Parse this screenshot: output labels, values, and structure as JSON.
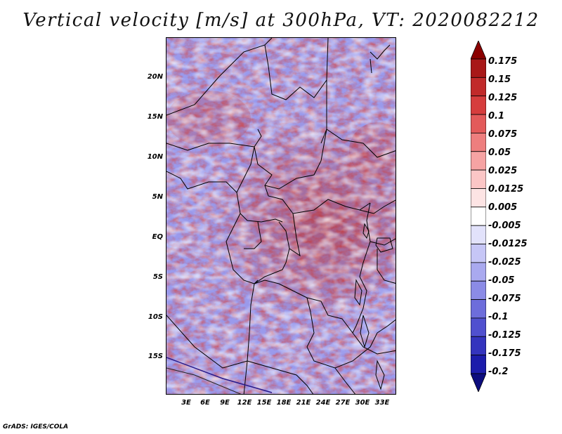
{
  "title": "Vertical velocity [m/s] at 300hPa, VT: 2020082212",
  "footer": "GrADS: IGES/COLA",
  "map": {
    "variable": "Vertical velocity",
    "units": "m/s",
    "level": "300hPa",
    "valid_time": "2020082212",
    "lat_ticks": [
      "20N",
      "15N",
      "10N",
      "5N",
      "EQ",
      "5S",
      "10S",
      "15S"
    ],
    "lon_ticks": [
      "3E",
      "6E",
      "9E",
      "12E",
      "15E",
      "18E",
      "21E",
      "24E",
      "27E",
      "30E",
      "33E"
    ]
  },
  "colorbar": {
    "labels": [
      "0.175",
      "0.15",
      "0.125",
      "0.1",
      "0.075",
      "0.05",
      "0.025",
      "0.0125",
      "0.005",
      "-0.005",
      "-0.0125",
      "-0.025",
      "-0.05",
      "-0.075",
      "-0.1",
      "-0.125",
      "-0.175",
      "-0.2"
    ],
    "colors": [
      "#8b0000",
      "#a81818",
      "#c12a2a",
      "#d63d3d",
      "#e35a5a",
      "#ee7e7e",
      "#f6a3a3",
      "#fbc6c6",
      "#fde4e4",
      "#ffffff",
      "#e2e2fb",
      "#c6c6f6",
      "#a9a9ef",
      "#8b8be6",
      "#6d6ddb",
      "#5050cf",
      "#3434be",
      "#1c1cab",
      "#0d0d7e"
    ]
  },
  "colors": {
    "background": "#ffffff",
    "border": "#000000"
  }
}
